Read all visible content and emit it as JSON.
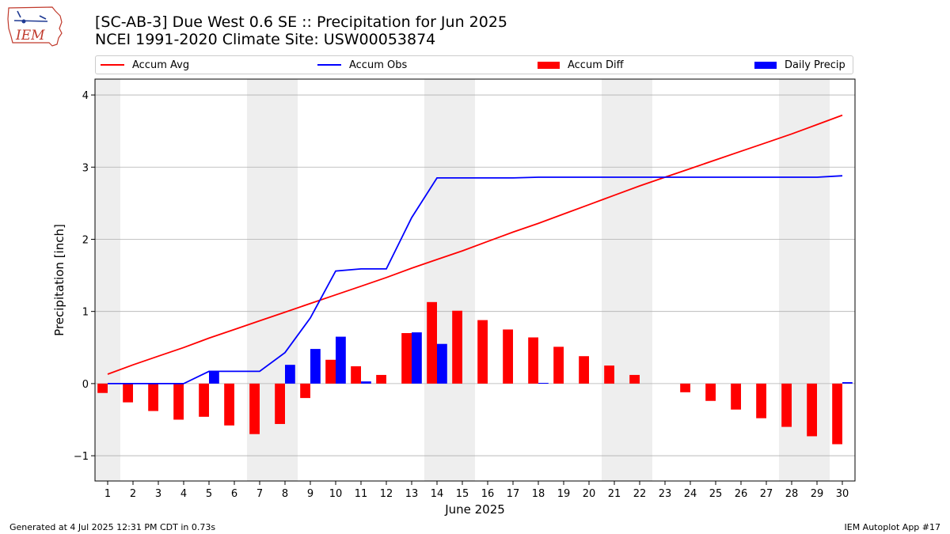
{
  "header": {
    "title_line1": "[SC-AB-3] Due West 0.6 SE :: Precipitation for Jun 2025",
    "title_line2": "NCEI 1991-2020 Climate Site: USW00053874",
    "logo_text": "IEM"
  },
  "footer": {
    "generated": "Generated at 4 Jul 2025 12:31 PM CDT in 0.73s",
    "app": "IEM Autoplot App #17"
  },
  "chart_data": {
    "type": "bar",
    "title": "[SC-AB-3] Due West 0.6 SE :: Precipitation for Jun 2025",
    "xlabel": "June 2025",
    "ylabel": "Precipitation [inch]",
    "xlim": [
      0.5,
      30.5
    ],
    "ylim": [
      -1.35,
      4.22
    ],
    "yticks": [
      -1,
      0,
      1,
      2,
      3,
      4
    ],
    "ytick_labels": [
      "−1",
      "0",
      "1",
      "2",
      "3",
      "4"
    ],
    "x": [
      1,
      2,
      3,
      4,
      5,
      6,
      7,
      8,
      9,
      10,
      11,
      12,
      13,
      14,
      15,
      16,
      17,
      18,
      19,
      20,
      21,
      22,
      23,
      24,
      25,
      26,
      27,
      28,
      29,
      30
    ],
    "weekend_bands": [
      [
        0.5,
        1.5
      ],
      [
        6.5,
        8.5
      ],
      [
        13.5,
        15.5
      ],
      [
        20.5,
        22.5
      ],
      [
        27.5,
        29.5
      ]
    ],
    "grid": "y",
    "legend_position": "top",
    "colors": {
      "avg": "#ff0000",
      "obs": "#0000ff",
      "diff": "#ff0000",
      "daily": "#0000ff",
      "weekend": "#eeeeee",
      "grid": "#b0b0b0"
    },
    "series": [
      {
        "name": "Accum Avg",
        "kind": "line",
        "color": "#ff0000",
        "values": [
          0.13,
          0.26,
          0.38,
          0.5,
          0.63,
          0.75,
          0.87,
          0.99,
          1.11,
          1.23,
          1.35,
          1.47,
          1.6,
          1.72,
          1.84,
          1.97,
          2.1,
          2.22,
          2.35,
          2.48,
          2.61,
          2.74,
          2.86,
          2.98,
          3.1,
          3.22,
          3.34,
          3.46,
          3.59,
          3.72
        ]
      },
      {
        "name": "Accum Obs",
        "kind": "line",
        "color": "#0000ff",
        "values": [
          0,
          0,
          0,
          0,
          0.17,
          0.17,
          0.17,
          0.43,
          0.91,
          1.56,
          1.59,
          1.59,
          2.3,
          2.85,
          2.85,
          2.85,
          2.85,
          2.86,
          2.86,
          2.86,
          2.86,
          2.86,
          2.86,
          2.86,
          2.86,
          2.86,
          2.86,
          2.86,
          2.86,
          2.88
        ]
      },
      {
        "name": "Accum Diff",
        "kind": "bar",
        "color": "#ff0000",
        "values": [
          -0.13,
          -0.26,
          -0.38,
          -0.5,
          -0.46,
          -0.58,
          -0.7,
          -0.56,
          -0.2,
          0.33,
          0.24,
          0.12,
          0.7,
          1.13,
          1.01,
          0.88,
          0.75,
          0.64,
          0.51,
          0.38,
          0.25,
          0.12,
          0,
          -0.12,
          -0.24,
          -0.36,
          -0.48,
          -0.6,
          -0.73,
          -0.84
        ]
      },
      {
        "name": "Daily Precip",
        "kind": "bar",
        "color": "#0000ff",
        "values": [
          0,
          0,
          0,
          0,
          0.17,
          0,
          0,
          0.26,
          0.48,
          0.65,
          0.03,
          0,
          0.71,
          0.55,
          0,
          0,
          0,
          0.01,
          0,
          0,
          0,
          0,
          0,
          0,
          0,
          0,
          0,
          0,
          0,
          0.02
        ]
      }
    ]
  }
}
